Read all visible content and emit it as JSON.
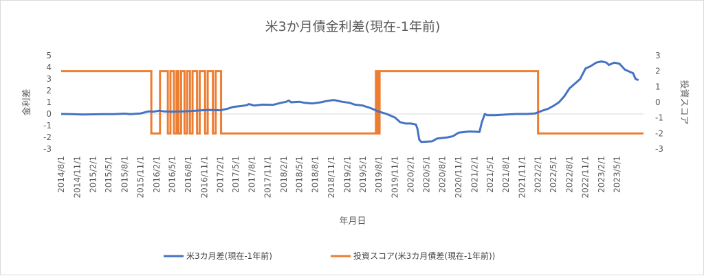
{
  "chart_data": {
    "type": "line",
    "title": "米3か月債金利差(現在-1年前)",
    "xlabel": "年月日",
    "ylabel_left": "金利差",
    "ylabel_right": "投資スコア",
    "ylim_left": [
      -3,
      5
    ],
    "ylim_right": [
      -3,
      3
    ],
    "xlim": [
      "2014-08-01",
      "2023-09-30"
    ],
    "x_tick_labels": [
      "2014/8/1",
      "2014/11/1",
      "2015/2/1",
      "2015/5/1",
      "2015/8/1",
      "2015/11/1",
      "2016/2/1",
      "2016/5/1",
      "2016/8/1",
      "2016/11/1",
      "2017/2/1",
      "2017/5/1",
      "2017/8/1",
      "2017/11/1",
      "2018/2/1",
      "2018/5/1",
      "2018/8/1",
      "2018/11/1",
      "2019/2/1",
      "2019/5/1",
      "2019/8/1",
      "2019/11/1",
      "2020/2/1",
      "2020/5/1",
      "2020/8/1",
      "2020/11/1",
      "2021/2/1",
      "2021/5/1",
      "2021/8/1",
      "2021/11/1",
      "2022/2/1",
      "2022/5/1",
      "2022/8/1",
      "2022/11/1",
      "2023/2/1",
      "2023/5/1"
    ],
    "y_ticks_left": [
      5,
      4,
      3,
      2,
      1,
      0,
      -1,
      -2,
      -3
    ],
    "y_ticks_right": [
      3,
      2,
      1,
      0,
      -1,
      -2,
      -3
    ],
    "grid": false,
    "legend_position": "bottom",
    "series": [
      {
        "name": "米3カ月差(現在-1年前)",
        "axis": "left",
        "color": "#4472c4",
        "points": [
          [
            "2014-08-01",
            0.0
          ],
          [
            "2014-10-01",
            -0.02
          ],
          [
            "2014-12-01",
            -0.05
          ],
          [
            "2015-02-01",
            -0.03
          ],
          [
            "2015-04-01",
            -0.02
          ],
          [
            "2015-06-01",
            -0.01
          ],
          [
            "2015-08-01",
            0.03
          ],
          [
            "2015-09-01",
            -0.02
          ],
          [
            "2015-11-01",
            0.05
          ],
          [
            "2015-12-15",
            0.22
          ],
          [
            "2016-01-15",
            0.2
          ],
          [
            "2016-02-15",
            0.28
          ],
          [
            "2016-03-15",
            0.22
          ],
          [
            "2016-05-01",
            0.2
          ],
          [
            "2016-07-01",
            0.22
          ],
          [
            "2016-08-15",
            0.25
          ],
          [
            "2016-10-01",
            0.3
          ],
          [
            "2016-12-01",
            0.35
          ],
          [
            "2017-02-01",
            0.32
          ],
          [
            "2017-03-15",
            0.45
          ],
          [
            "2017-04-15",
            0.6
          ],
          [
            "2017-06-01",
            0.68
          ],
          [
            "2017-07-01",
            0.75
          ],
          [
            "2017-07-15",
            0.85
          ],
          [
            "2017-08-15",
            0.72
          ],
          [
            "2017-10-01",
            0.8
          ],
          [
            "2017-12-01",
            0.78
          ],
          [
            "2018-01-15",
            0.95
          ],
          [
            "2018-02-15",
            1.05
          ],
          [
            "2018-03-01",
            1.15
          ],
          [
            "2018-03-15",
            1.0
          ],
          [
            "2018-05-01",
            1.05
          ],
          [
            "2018-06-01",
            0.95
          ],
          [
            "2018-07-15",
            0.9
          ],
          [
            "2018-09-01",
            1.0
          ],
          [
            "2018-10-01",
            1.1
          ],
          [
            "2018-11-15",
            1.2
          ],
          [
            "2019-01-01",
            1.05
          ],
          [
            "2019-02-15",
            0.95
          ],
          [
            "2019-03-15",
            0.8
          ],
          [
            "2019-05-01",
            0.72
          ],
          [
            "2019-06-15",
            0.5
          ],
          [
            "2019-08-01",
            0.2
          ],
          [
            "2019-09-15",
            0.0
          ],
          [
            "2019-11-01",
            -0.3
          ],
          [
            "2019-12-01",
            -0.7
          ],
          [
            "2020-01-01",
            -0.82
          ],
          [
            "2020-02-01",
            -0.82
          ],
          [
            "2020-03-01",
            -0.9
          ],
          [
            "2020-03-10",
            -1.3
          ],
          [
            "2020-03-20",
            -2.2
          ],
          [
            "2020-04-01",
            -2.4
          ],
          [
            "2020-06-01",
            -2.35
          ],
          [
            "2020-07-01",
            -2.1
          ],
          [
            "2020-09-01",
            -2.0
          ],
          [
            "2020-10-01",
            -1.9
          ],
          [
            "2020-11-01",
            -1.6
          ],
          [
            "2021-01-01",
            -1.5
          ],
          [
            "2021-02-01",
            -1.52
          ],
          [
            "2021-03-01",
            -1.55
          ],
          [
            "2021-03-15",
            -0.7
          ],
          [
            "2021-04-01",
            0.0
          ],
          [
            "2021-04-15",
            -0.1
          ],
          [
            "2021-06-01",
            -0.1
          ],
          [
            "2021-08-01",
            -0.05
          ],
          [
            "2021-10-01",
            0.0
          ],
          [
            "2021-12-01",
            0.0
          ],
          [
            "2022-01-15",
            0.05
          ],
          [
            "2022-03-01",
            0.3
          ],
          [
            "2022-04-01",
            0.45
          ],
          [
            "2022-05-01",
            0.7
          ],
          [
            "2022-06-01",
            1.0
          ],
          [
            "2022-07-01",
            1.5
          ],
          [
            "2022-08-01",
            2.2
          ],
          [
            "2022-09-01",
            2.6
          ],
          [
            "2022-10-01",
            3.0
          ],
          [
            "2022-11-01",
            3.9
          ],
          [
            "2022-12-01",
            4.1
          ],
          [
            "2023-01-01",
            4.4
          ],
          [
            "2023-02-01",
            4.5
          ],
          [
            "2023-03-01",
            4.4
          ],
          [
            "2023-03-15",
            4.2
          ],
          [
            "2023-04-15",
            4.4
          ],
          [
            "2023-05-15",
            4.3
          ],
          [
            "2023-06-15",
            3.8
          ],
          [
            "2023-07-15",
            3.6
          ],
          [
            "2023-08-01",
            3.5
          ],
          [
            "2023-08-15",
            3.0
          ],
          [
            "2023-09-01",
            2.9
          ]
        ]
      },
      {
        "name": "投資スコア(米3カ月債差(現在-1年前))",
        "axis": "right",
        "color": "#ed7d31",
        "step_points": [
          [
            "2014-08-01",
            2
          ],
          [
            "2016-01-01",
            -2
          ],
          [
            "2016-02-20",
            2
          ],
          [
            "2016-04-05",
            -2
          ],
          [
            "2016-04-20",
            2
          ],
          [
            "2016-05-10",
            -2
          ],
          [
            "2016-05-25",
            2
          ],
          [
            "2016-06-05",
            -2
          ],
          [
            "2016-06-20",
            2
          ],
          [
            "2016-07-10",
            -2
          ],
          [
            "2016-07-25",
            2
          ],
          [
            "2016-08-10",
            -2
          ],
          [
            "2016-08-25",
            2
          ],
          [
            "2016-09-20",
            -2
          ],
          [
            "2016-10-05",
            2
          ],
          [
            "2016-11-05",
            -2
          ],
          [
            "2016-11-20",
            2
          ],
          [
            "2016-12-20",
            -2
          ],
          [
            "2017-01-05",
            2
          ],
          [
            "2017-02-05",
            -2
          ],
          [
            "2019-07-15",
            2
          ],
          [
            "2019-07-25",
            -2
          ],
          [
            "2019-08-05",
            2
          ],
          [
            "2022-02-01",
            -2
          ],
          [
            "2023-09-30",
            -2
          ]
        ]
      }
    ]
  }
}
